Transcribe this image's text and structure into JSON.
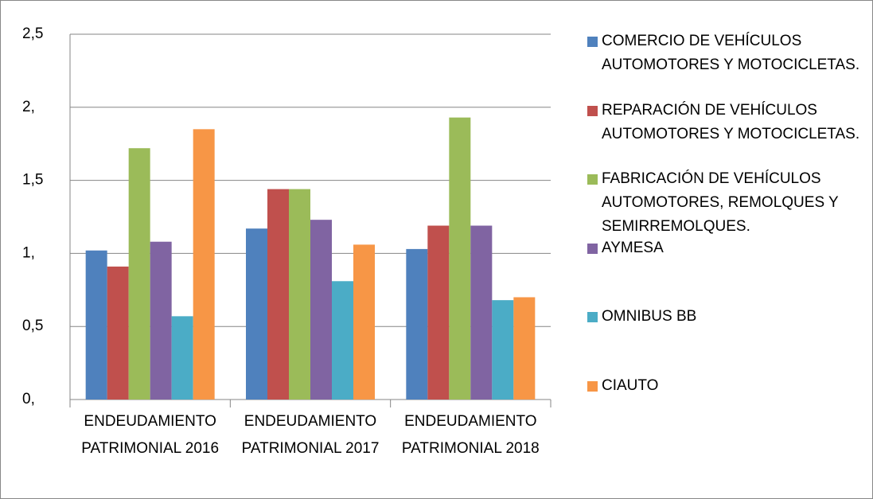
{
  "chart_data": {
    "type": "bar",
    "categories": [
      "ENDEUDAMIENTO PATRIMONIAL 2016",
      "ENDEUDAMIENTO PATRIMONIAL 2017",
      "ENDEUDAMIENTO PATRIMONIAL 2018"
    ],
    "series": [
      {
        "name": "COMERCIO  DE VEHÍCULOS AUTOMOTORES Y MOTOCICLETAS.",
        "color": "#4f81bd",
        "values": [
          1.02,
          1.17,
          1.03
        ]
      },
      {
        "name": "REPARACIÓN DE VEHÍCULOS AUTOMOTORES Y MOTOCICLETAS.",
        "color": "#c0504d",
        "values": [
          0.91,
          1.44,
          1.19
        ]
      },
      {
        "name": "FABRICACIÓN DE VEHÍCULOS AUTOMOTORES, REMOLQUES Y SEMIRREMOLQUES.",
        "color": "#9bbb59",
        "values": [
          1.72,
          1.44,
          1.93
        ]
      },
      {
        "name": "AYMESA",
        "color": "#8064a2",
        "values": [
          1.08,
          1.23,
          1.19
        ]
      },
      {
        "name": "OMNIBUS BB",
        "color": "#4bacc6",
        "values": [
          0.57,
          0.81,
          0.68
        ]
      },
      {
        "name": "CIAUTO",
        "color": "#f79646",
        "values": [
          1.85,
          1.06,
          0.7
        ]
      }
    ],
    "ylim": [
      0,
      2.5
    ],
    "yticks": [
      {
        "value": 0,
        "label": "0,"
      },
      {
        "value": 0.5,
        "label": "0,5"
      },
      {
        "value": 1,
        "label": "1,"
      },
      {
        "value": 1.5,
        "label": "1,5"
      },
      {
        "value": 2,
        "label": "2,"
      },
      {
        "value": 2.5,
        "label": "2,5"
      }
    ],
    "grid": true
  }
}
